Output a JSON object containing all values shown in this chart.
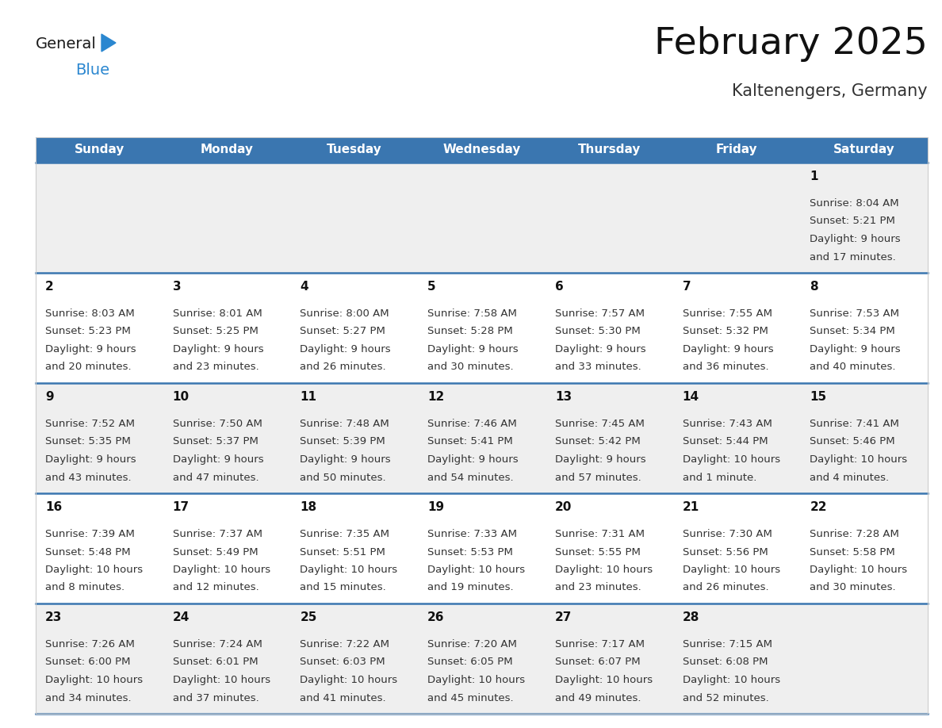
{
  "title": "February 2025",
  "subtitle": "Kaltenengers, Germany",
  "header_bg": "#3a76b0",
  "header_text_color": "#ffffff",
  "days_of_week": [
    "Sunday",
    "Monday",
    "Tuesday",
    "Wednesday",
    "Thursday",
    "Friday",
    "Saturday"
  ],
  "row_bg_odd": "#efefef",
  "row_bg_even": "#ffffff",
  "cell_text_color": "#333333",
  "day_num_color": "#111111",
  "separator_color": "#3a76b0",
  "calendar_data": [
    [
      null,
      null,
      null,
      null,
      null,
      null,
      {
        "day": 1,
        "sunrise": "8:04 AM",
        "sunset": "5:21 PM",
        "daylight": "9 hours",
        "daylight2": "and 17 minutes."
      }
    ],
    [
      {
        "day": 2,
        "sunrise": "8:03 AM",
        "sunset": "5:23 PM",
        "daylight": "9 hours",
        "daylight2": "and 20 minutes."
      },
      {
        "day": 3,
        "sunrise": "8:01 AM",
        "sunset": "5:25 PM",
        "daylight": "9 hours",
        "daylight2": "and 23 minutes."
      },
      {
        "day": 4,
        "sunrise": "8:00 AM",
        "sunset": "5:27 PM",
        "daylight": "9 hours",
        "daylight2": "and 26 minutes."
      },
      {
        "day": 5,
        "sunrise": "7:58 AM",
        "sunset": "5:28 PM",
        "daylight": "9 hours",
        "daylight2": "and 30 minutes."
      },
      {
        "day": 6,
        "sunrise": "7:57 AM",
        "sunset": "5:30 PM",
        "daylight": "9 hours",
        "daylight2": "and 33 minutes."
      },
      {
        "day": 7,
        "sunrise": "7:55 AM",
        "sunset": "5:32 PM",
        "daylight": "9 hours",
        "daylight2": "and 36 minutes."
      },
      {
        "day": 8,
        "sunrise": "7:53 AM",
        "sunset": "5:34 PM",
        "daylight": "9 hours",
        "daylight2": "and 40 minutes."
      }
    ],
    [
      {
        "day": 9,
        "sunrise": "7:52 AM",
        "sunset": "5:35 PM",
        "daylight": "9 hours",
        "daylight2": "and 43 minutes."
      },
      {
        "day": 10,
        "sunrise": "7:50 AM",
        "sunset": "5:37 PM",
        "daylight": "9 hours",
        "daylight2": "and 47 minutes."
      },
      {
        "day": 11,
        "sunrise": "7:48 AM",
        "sunset": "5:39 PM",
        "daylight": "9 hours",
        "daylight2": "and 50 minutes."
      },
      {
        "day": 12,
        "sunrise": "7:46 AM",
        "sunset": "5:41 PM",
        "daylight": "9 hours",
        "daylight2": "and 54 minutes."
      },
      {
        "day": 13,
        "sunrise": "7:45 AM",
        "sunset": "5:42 PM",
        "daylight": "9 hours",
        "daylight2": "and 57 minutes."
      },
      {
        "day": 14,
        "sunrise": "7:43 AM",
        "sunset": "5:44 PM",
        "daylight": "10 hours",
        "daylight2": "and 1 minute."
      },
      {
        "day": 15,
        "sunrise": "7:41 AM",
        "sunset": "5:46 PM",
        "daylight": "10 hours",
        "daylight2": "and 4 minutes."
      }
    ],
    [
      {
        "day": 16,
        "sunrise": "7:39 AM",
        "sunset": "5:48 PM",
        "daylight": "10 hours",
        "daylight2": "and 8 minutes."
      },
      {
        "day": 17,
        "sunrise": "7:37 AM",
        "sunset": "5:49 PM",
        "daylight": "10 hours",
        "daylight2": "and 12 minutes."
      },
      {
        "day": 18,
        "sunrise": "7:35 AM",
        "sunset": "5:51 PM",
        "daylight": "10 hours",
        "daylight2": "and 15 minutes."
      },
      {
        "day": 19,
        "sunrise": "7:33 AM",
        "sunset": "5:53 PM",
        "daylight": "10 hours",
        "daylight2": "and 19 minutes."
      },
      {
        "day": 20,
        "sunrise": "7:31 AM",
        "sunset": "5:55 PM",
        "daylight": "10 hours",
        "daylight2": "and 23 minutes."
      },
      {
        "day": 21,
        "sunrise": "7:30 AM",
        "sunset": "5:56 PM",
        "daylight": "10 hours",
        "daylight2": "and 26 minutes."
      },
      {
        "day": 22,
        "sunrise": "7:28 AM",
        "sunset": "5:58 PM",
        "daylight": "10 hours",
        "daylight2": "and 30 minutes."
      }
    ],
    [
      {
        "day": 23,
        "sunrise": "7:26 AM",
        "sunset": "6:00 PM",
        "daylight": "10 hours",
        "daylight2": "and 34 minutes."
      },
      {
        "day": 24,
        "sunrise": "7:24 AM",
        "sunset": "6:01 PM",
        "daylight": "10 hours",
        "daylight2": "and 37 minutes."
      },
      {
        "day": 25,
        "sunrise": "7:22 AM",
        "sunset": "6:03 PM",
        "daylight": "10 hours",
        "daylight2": "and 41 minutes."
      },
      {
        "day": 26,
        "sunrise": "7:20 AM",
        "sunset": "6:05 PM",
        "daylight": "10 hours",
        "daylight2": "and 45 minutes."
      },
      {
        "day": 27,
        "sunrise": "7:17 AM",
        "sunset": "6:07 PM",
        "daylight": "10 hours",
        "daylight2": "and 49 minutes."
      },
      {
        "day": 28,
        "sunrise": "7:15 AM",
        "sunset": "6:08 PM",
        "daylight": "10 hours",
        "daylight2": "and 52 minutes."
      },
      null
    ]
  ],
  "logo_text_general": "General",
  "logo_text_blue": "Blue",
  "logo_color_general": "#1a1a1a",
  "logo_color_blue": "#2b87d0",
  "logo_triangle_color": "#2b87d0",
  "fig_width": 11.88,
  "fig_height": 9.18,
  "dpi": 100
}
